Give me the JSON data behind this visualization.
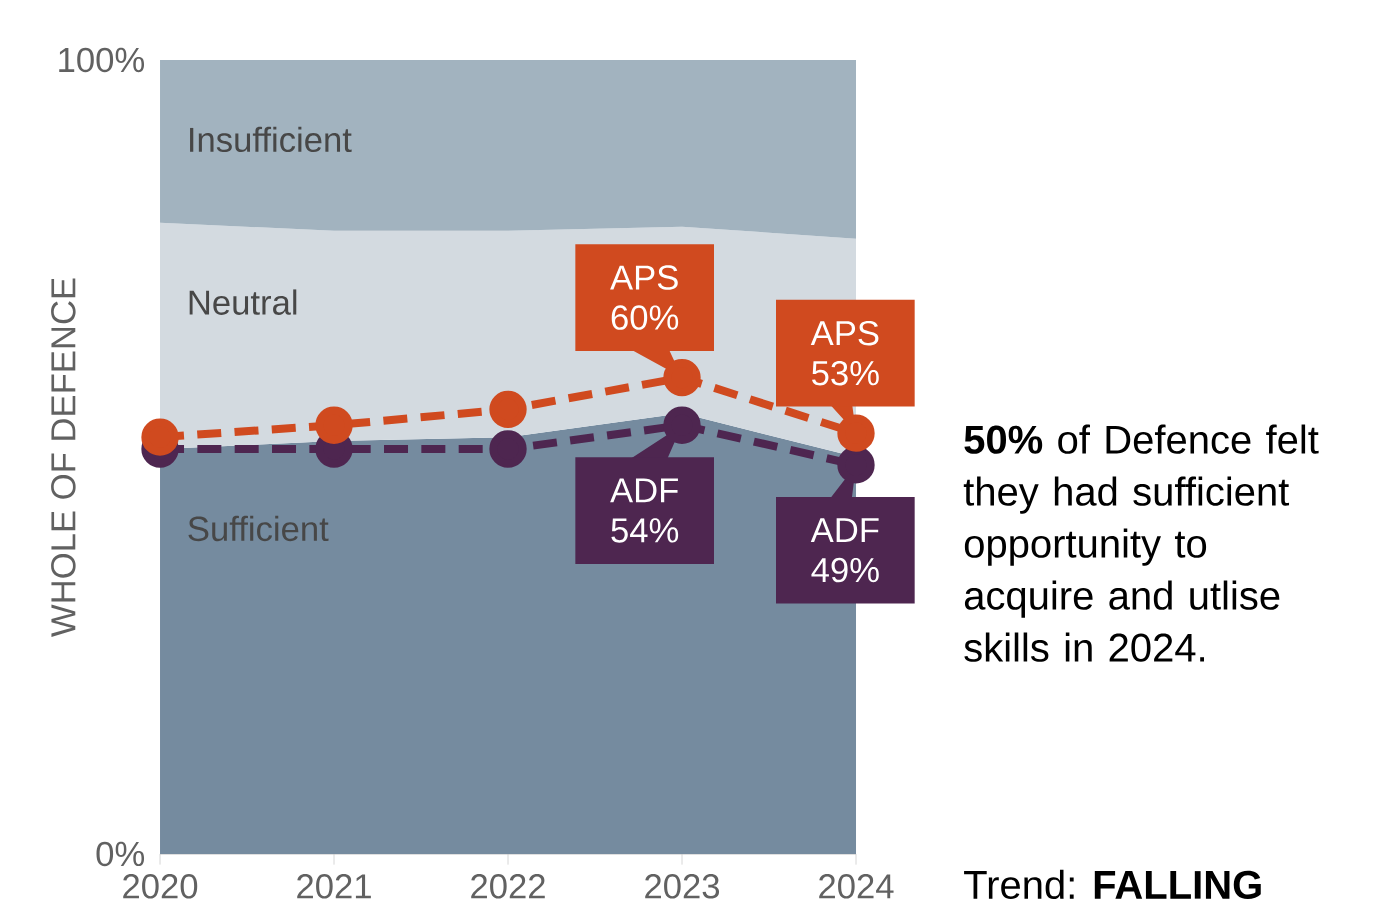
{
  "chart_data": {
    "type": "area",
    "stacked": true,
    "ylabel": "WHOLE OF DEFENCE",
    "categories": [
      "2020",
      "2021",
      "2022",
      "2023",
      "2024"
    ],
    "ylim": [
      0,
      100
    ],
    "yticks": [
      {
        "value": 0,
        "label": "0%"
      },
      {
        "value": 100,
        "label": "100%"
      }
    ],
    "series": [
      {
        "name": "Sufficient",
        "color": "#758b9f",
        "values": [
          51,
          52,
          52.5,
          55.5,
          50
        ]
      },
      {
        "name": "Neutral",
        "color": "#d3dae0",
        "values": [
          28.5,
          26.5,
          26,
          23.5,
          27.5
        ]
      },
      {
        "name": "Insufficient",
        "color": "#a2b3bf",
        "values": [
          20.5,
          21.5,
          21.5,
          21,
          22.5
        ]
      },
      {
        "type": "line",
        "color": "#d04a1f",
        "marker": "circle",
        "line_style": "dashed",
        "values": [
          52.5,
          54,
          56,
          60,
          53
        ],
        "value_labels": [
          null,
          null,
          null,
          "APS 60%",
          "APS 53%"
        ]
      },
      {
        "type": "line",
        "color": "#4e2650",
        "marker": "circle",
        "line_style": "dashed",
        "values": [
          51,
          51,
          51,
          54,
          49
        ],
        "value_labels": [
          null,
          null,
          null,
          "ADF 54%",
          "ADF 49%"
        ]
      }
    ],
    "annotations": [
      "**50%** of Defence felt they had sufficient opportunity to acquire and utlise skills in 2024.",
      "Trend: **FALLING**"
    ]
  }
}
